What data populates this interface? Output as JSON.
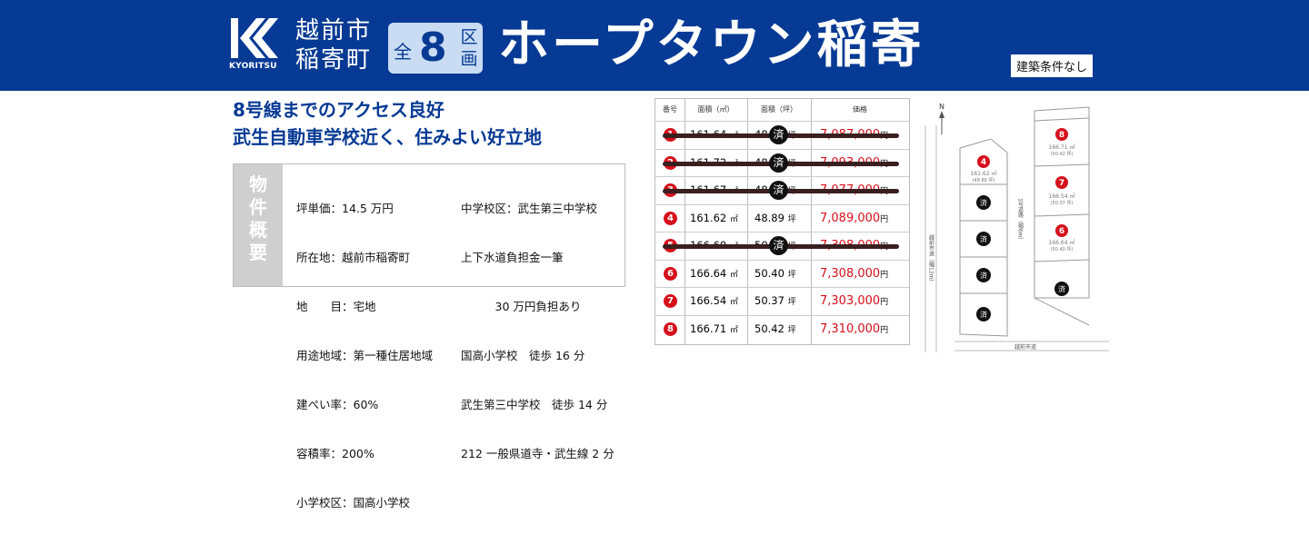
{
  "header": {
    "logo_text": "KYORITSU",
    "city_line1": "越前市",
    "city_line2": "稲寄町",
    "lots_prefix": "全",
    "lots_count": "8",
    "lots_suffix1": "区",
    "lots_suffix2": "画",
    "title": "ホープタウン稲寄",
    "condition": "建築条件なし"
  },
  "tagline": {
    "line1": "8号線までのアクセス良好",
    "line2": "武生自動車学校近く、住みよい好立地"
  },
  "overview": {
    "label_chars": [
      "物",
      "件",
      "概",
      "要"
    ],
    "col1": [
      "坪単価：14.5 万円",
      "所在地：越前市稲寄町",
      "地　　目：宅地",
      "用途地域：第一種住居地域",
      "建ぺい率：60%",
      "容積率：200%",
      "小学校区：国高小学校"
    ],
    "col2": [
      "中学校区：武生第三中学校",
      "上下水道負担金一筆",
      "　　　30 万円負担あり",
      "国高小学校　徒歩 16 分",
      "武生第三中学校　徒歩 14 分",
      "212 一般県道寺・武生線 2 分"
    ]
  },
  "table": {
    "headers": [
      "番号",
      "面積（㎡）",
      "面積（坪）",
      "価格"
    ],
    "sqm_unit": "㎡",
    "tsubo_unit": "坪",
    "yen_unit": "円",
    "sold_mark": "済",
    "rows": [
      {
        "no": "1",
        "sqm": "161.64",
        "tsubo": "48.89",
        "price": "7,087,000",
        "sold": true
      },
      {
        "no": "2",
        "sqm": "161.72",
        "tsubo": "48.92",
        "price": "7,093,000",
        "sold": true
      },
      {
        "no": "3",
        "sqm": "161.67",
        "tsubo": "48.90",
        "price": "7,077,000",
        "sold": true
      },
      {
        "no": "4",
        "sqm": "161.62",
        "tsubo": "48.89",
        "price": "7,089,000",
        "sold": false
      },
      {
        "no": "5",
        "sqm": "166.60",
        "tsubo": "50.40",
        "price": "7,308,000",
        "sold": true
      },
      {
        "no": "6",
        "sqm": "166.64",
        "tsubo": "50.40",
        "price": "7,308,000",
        "sold": false
      },
      {
        "no": "7",
        "sqm": "166.54",
        "tsubo": "50.37",
        "price": "7,303,000",
        "sold": false
      },
      {
        "no": "8",
        "sqm": "166.71",
        "tsubo": "50.42",
        "price": "7,310,000",
        "sold": false
      }
    ]
  },
  "map": {
    "north": "N",
    "road_left": "越前市道（幅12m）",
    "road_mid": "1号道路（幅6m）",
    "road_bottom": "越前市道",
    "lot4": {
      "no": "4",
      "sqm": "161.62 ㎡",
      "tsubo": "(48.89 坪)"
    },
    "lot8": {
      "no": "8",
      "sqm": "166.71 ㎡",
      "tsubo": "(50.42 坪)"
    },
    "lot7": {
      "no": "7",
      "sqm": "166.54 ㎡",
      "tsubo": "(50.37 坪)"
    },
    "lot6": {
      "no": "6",
      "sqm": "166.64 ㎡",
      "tsubo": "(50.40 坪)"
    },
    "sold_mark": "済"
  },
  "colors": {
    "brand": "#073a94",
    "accent_red": "#d5101b"
  }
}
